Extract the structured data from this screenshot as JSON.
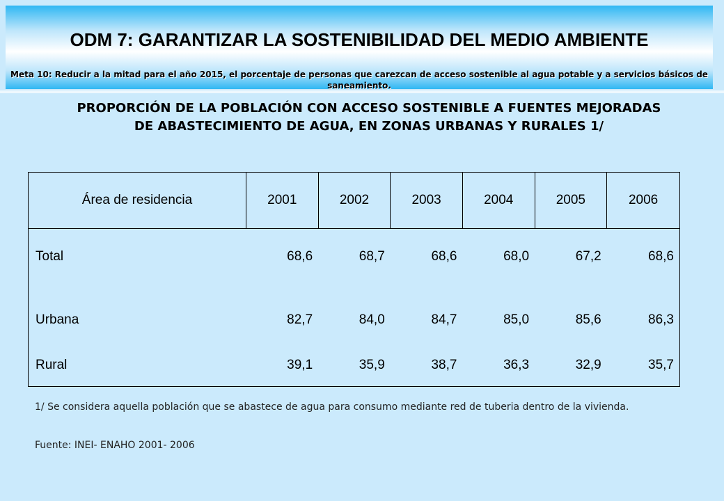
{
  "banner": {
    "title": "ODM 7: GARANTIZAR LA SOSTENIBILIDAD DEL MEDIO AMBIENTE",
    "subtitle": "Meta 10:  Reducir a la mitad para el año 2015,  el porcentaje de personas que carezcan de acceso sostenible al agua potable y a servicios básicos de saneamiento."
  },
  "main_title": "PROPORCIÓN DE LA POBLACIÓN CON ACCESO SOSTENIBLE A FUENTES MEJORADAS  DE ABASTECIMIENTO DE AGUA,  EN ZONAS URBANAS Y RURALES 1/",
  "table": {
    "headers": [
      "Área de residencia",
      "2001",
      "2002",
      "2003",
      "2004",
      "2005",
      "2006"
    ],
    "rows": [
      {
        "label": "Total",
        "values": [
          "68,6",
          "68,7",
          "68,6",
          "68,0",
          "67,2",
          "68,6"
        ]
      },
      {
        "label": "Urbana",
        "values": [
          "82,7",
          "84,0",
          "84,7",
          "85,0",
          "85,6",
          "86,3"
        ]
      },
      {
        "label": "Rural",
        "values": [
          "39,1",
          "35,9",
          "38,7",
          "36,3",
          "32,9",
          "35,7"
        ]
      }
    ]
  },
  "footnote": "1/ Se considera aquella población que se abastece de agua para consumo mediante red de tuberia dentro de la vivienda.",
  "source": "Fuente: INEI- ENAHO 2001- 2006"
}
